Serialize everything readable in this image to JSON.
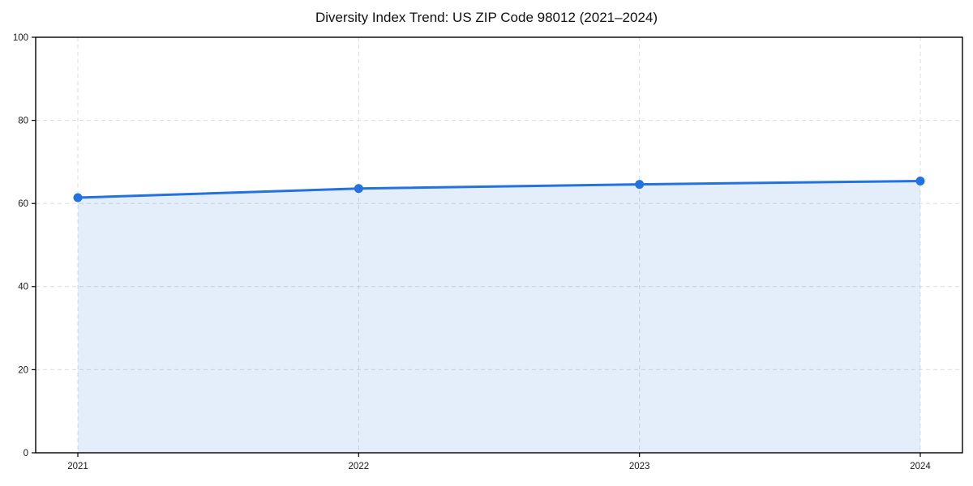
{
  "chart_data": {
    "type": "area",
    "title": "Diversity Index Trend: US ZIP Code 98012 (2021–2024)",
    "xlabel": "",
    "ylabel": "",
    "categories": [
      "2021",
      "2022",
      "2023",
      "2024"
    ],
    "series": [
      {
        "name": "Diversity Index",
        "values": [
          61.4,
          63.6,
          64.6,
          65.4
        ]
      }
    ],
    "ylim": [
      0,
      100
    ],
    "yticks": [
      0,
      20,
      40,
      60,
      80,
      100
    ],
    "grid": true,
    "grid_style": "dashed",
    "legend": false,
    "legend_position": "none",
    "colors": {
      "line": "#2372e0",
      "marker": "#2372e0",
      "fill": "rgba(35,114,224,0.12)",
      "grid": "#dcdcdc",
      "axis": "#000000",
      "tick_text": "#1a1a1a",
      "background": "#ffffff"
    }
  }
}
